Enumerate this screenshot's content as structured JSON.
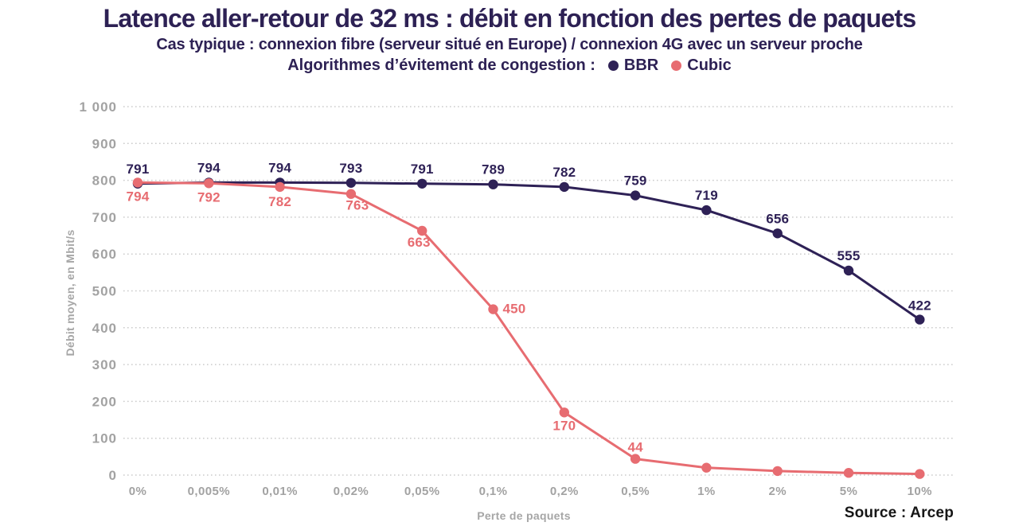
{
  "header": {
    "title": "Latence aller-retour de 32 ms : débit en fonction des pertes de paquets",
    "subtitle": "Cas typique : connexion fibre (serveur situé en Europe) / connexion 4G avec un serveur proche",
    "legend_prefix": "Algorithmes d’évitement de congestion :"
  },
  "colors": {
    "bbr": "#2e2156",
    "cubic": "#e76c71",
    "title_text": "#2d2154",
    "axis_text": "#a2a2a2",
    "grid": "#cbcbcb",
    "source_text": "#161616"
  },
  "chart_data": {
    "type": "line",
    "title": "Latence aller-retour de 32 ms : débit en fonction des pertes de paquets",
    "subtitle": "Cas typique : connexion fibre (serveur situé en Europe) / connexion 4G avec un serveur proche",
    "categories": [
      "0%",
      "0,005%",
      "0,01%",
      "0,02%",
      "0,05%",
      "0,1%",
      "0,2%",
      "0,5%",
      "1%",
      "2%",
      "5%",
      "10%"
    ],
    "series": [
      {
        "name": "BBR",
        "color": "#2e2156",
        "values": [
          791,
          794,
          794,
          793,
          791,
          789,
          782,
          759,
          719,
          656,
          555,
          422
        ],
        "labels": [
          "791",
          "794",
          "794",
          "793",
          "791",
          "789",
          "782",
          "759",
          "719",
          "656",
          "555",
          "422"
        ],
        "label_offsets": [
          [
            0,
            -13
          ],
          [
            0,
            -13
          ],
          [
            0,
            -13
          ],
          [
            0,
            -13
          ],
          [
            0,
            -13
          ],
          [
            0,
            -13
          ],
          [
            0,
            -13
          ],
          [
            0,
            -13
          ],
          [
            0,
            -13
          ],
          [
            0,
            -13
          ],
          [
            0,
            -13
          ],
          [
            0,
            -12
          ]
        ]
      },
      {
        "name": "Cubic",
        "color": "#e76c71",
        "values": [
          794,
          792,
          782,
          763,
          663,
          450,
          170,
          44,
          20,
          11,
          6,
          3
        ],
        "labels": [
          "794",
          "792",
          "782",
          "763",
          "663",
          "450",
          "170",
          "44",
          null,
          null,
          null,
          null
        ],
        "label_offsets": [
          [
            0,
            23
          ],
          [
            0,
            23
          ],
          [
            0,
            24
          ],
          [
            8,
            20
          ],
          [
            -4,
            20
          ],
          [
            12,
            5,
            "start"
          ],
          [
            0,
            22
          ],
          [
            0,
            -9
          ]
        ]
      }
    ],
    "xlabel": "Perte de paquets",
    "ylabel": "Débit moyen, en Mbit/s",
    "ylim": [
      0,
      1000
    ],
    "yticks": [
      {
        "value": 0,
        "label": "0"
      },
      {
        "value": 100,
        "label": "100"
      },
      {
        "value": 200,
        "label": "200"
      },
      {
        "value": 300,
        "label": "300"
      },
      {
        "value": 400,
        "label": "400"
      },
      {
        "value": 500,
        "label": "500"
      },
      {
        "value": 600,
        "label": "600"
      },
      {
        "value": 700,
        "label": "700"
      },
      {
        "value": 800,
        "label": "800"
      },
      {
        "value": 900,
        "label": "900"
      },
      {
        "value": 1000,
        "label": "1 000"
      }
    ],
    "grid": "horizontal-dotted",
    "legend_position": "top"
  },
  "footer": {
    "source": "Source : Arcep"
  }
}
